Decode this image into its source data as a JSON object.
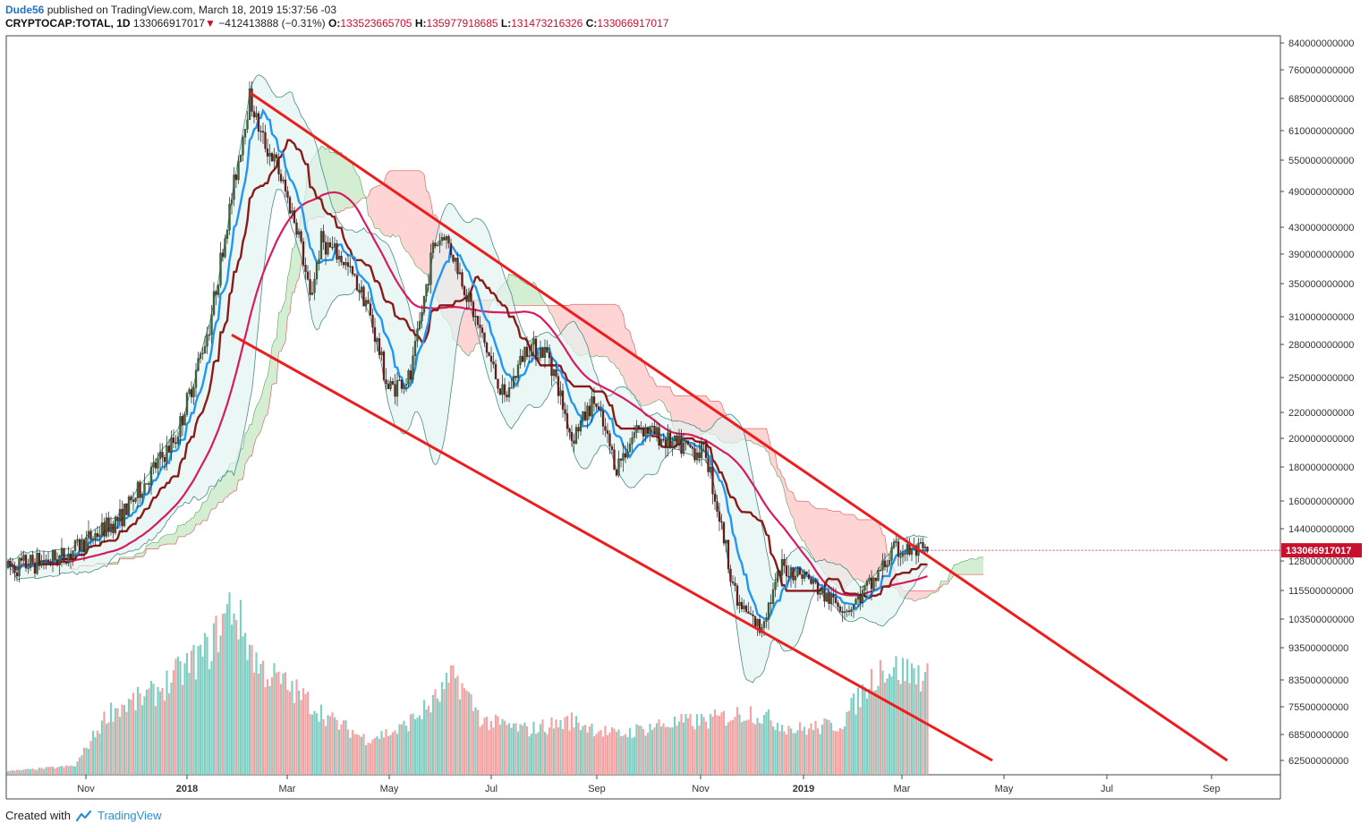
{
  "header": {
    "author": "Dude56",
    "published_text": "published on TradingView.com, March 18, 2019 15:37:56 -03",
    "symbol": "CRYPTOCAP:TOTAL, 1D",
    "last": "133066917017",
    "change_arrow": "▼",
    "change": "−412413888 (−0.31%)",
    "o_label": "O:",
    "o_value": "133523665705",
    "h_label": "H:",
    "h_value": "135977918685",
    "l_label": "L:",
    "l_value": "131473216326",
    "c_label": "C:",
    "c_value": "133066917017"
  },
  "footer": {
    "created_with": "Created with",
    "brand": "TradingView",
    "logo_icon": "tradingview-cloud-icon"
  },
  "colors": {
    "up": "#3d6b35",
    "down": "#7a1717",
    "tenkan": "#2196f3",
    "kijun": "#8b1a1a",
    "ma": "#d81b60",
    "trend": "#ee1c1c",
    "cloud_bear": "#ffcccc",
    "cloud_bull": "#cdebcb",
    "band": "#e2f3f1",
    "vol_up": "#7fcfc4",
    "vol_down": "#f4a3a3",
    "price_tag": "#c8102e"
  },
  "chart_data": {
    "type": "candlestick",
    "title": "",
    "xlabel": "",
    "ylabel": "",
    "y_scale": "log",
    "ylim": [
      600000000000,
      840000000000
    ],
    "y_ticks": [
      "840000000000",
      "760000000000",
      "685000000000",
      "610000000000",
      "550000000000",
      "490000000000",
      "430000000000",
      "390000000000",
      "350000000000",
      "310000000000",
      "280000000000",
      "250000000000",
      "220000000000",
      "200000000000",
      "180000000000",
      "160000000000",
      "144000000000",
      "128000000000",
      "115500000000",
      "103500000000",
      "93500000000",
      "83500000000",
      "75500000000",
      "68500000000",
      "62500000000"
    ],
    "x_ticks": [
      {
        "label": "Nov",
        "bold": false
      },
      {
        "label": "2018",
        "bold": true
      },
      {
        "label": "Mar",
        "bold": false
      },
      {
        "label": "May",
        "bold": false
      },
      {
        "label": "Jul",
        "bold": false
      },
      {
        "label": "Sep",
        "bold": false
      },
      {
        "label": "Nov",
        "bold": false
      },
      {
        "label": "2019",
        "bold": true
      },
      {
        "label": "Mar",
        "bold": false
      },
      {
        "label": "May",
        "bold": false
      },
      {
        "label": "Jul",
        "bold": false
      },
      {
        "label": "Sep",
        "bold": false
      }
    ],
    "last_price_label": "133066917017",
    "price_path": [
      [
        0,
        125
      ],
      [
        25,
        130
      ],
      [
        50,
        150
      ],
      [
        75,
        200
      ],
      [
        90,
        300
      ],
      [
        100,
        480
      ],
      [
        108,
        690
      ],
      [
        113,
        600
      ],
      [
        120,
        540
      ],
      [
        130,
        420
      ],
      [
        135,
        330
      ],
      [
        140,
        410
      ],
      [
        150,
        380
      ],
      [
        160,
        330
      ],
      [
        170,
        240
      ],
      [
        180,
        250
      ],
      [
        190,
        400
      ],
      [
        195,
        420
      ],
      [
        200,
        380
      ],
      [
        210,
        300
      ],
      [
        222,
        230
      ],
      [
        232,
        280
      ],
      [
        242,
        270
      ],
      [
        252,
        200
      ],
      [
        262,
        230
      ],
      [
        272,
        180
      ],
      [
        282,
        210
      ],
      [
        298,
        195
      ],
      [
        312,
        190
      ],
      [
        326,
        110
      ],
      [
        336,
        100
      ],
      [
        346,
        125
      ],
      [
        356,
        122
      ],
      [
        366,
        112
      ],
      [
        376,
        108
      ],
      [
        386,
        118
      ],
      [
        396,
        133
      ],
      [
        412,
        132
      ]
    ],
    "volume_levels": [
      [
        0,
        0.02
      ],
      [
        30,
        0.05
      ],
      [
        45,
        0.35
      ],
      [
        65,
        0.45
      ],
      [
        80,
        0.6
      ],
      [
        90,
        0.7
      ],
      [
        100,
        0.95
      ],
      [
        112,
        0.6
      ],
      [
        130,
        0.45
      ],
      [
        145,
        0.3
      ],
      [
        160,
        0.2
      ],
      [
        175,
        0.25
      ],
      [
        190,
        0.4
      ],
      [
        200,
        0.55
      ],
      [
        212,
        0.3
      ],
      [
        232,
        0.25
      ],
      [
        252,
        0.3
      ],
      [
        272,
        0.22
      ],
      [
        292,
        0.28
      ],
      [
        312,
        0.3
      ],
      [
        332,
        0.35
      ],
      [
        352,
        0.25
      ],
      [
        372,
        0.28
      ],
      [
        390,
        0.6
      ],
      [
        412,
        0.55
      ]
    ],
    "trend_lines": [
      {
        "from": [
          108,
          700000000000
        ],
        "to": [
          545,
          58000000000
        ]
      },
      {
        "from": [
          100,
          290000000000
        ],
        "to": [
          440,
          58000000000
        ]
      }
    ]
  }
}
